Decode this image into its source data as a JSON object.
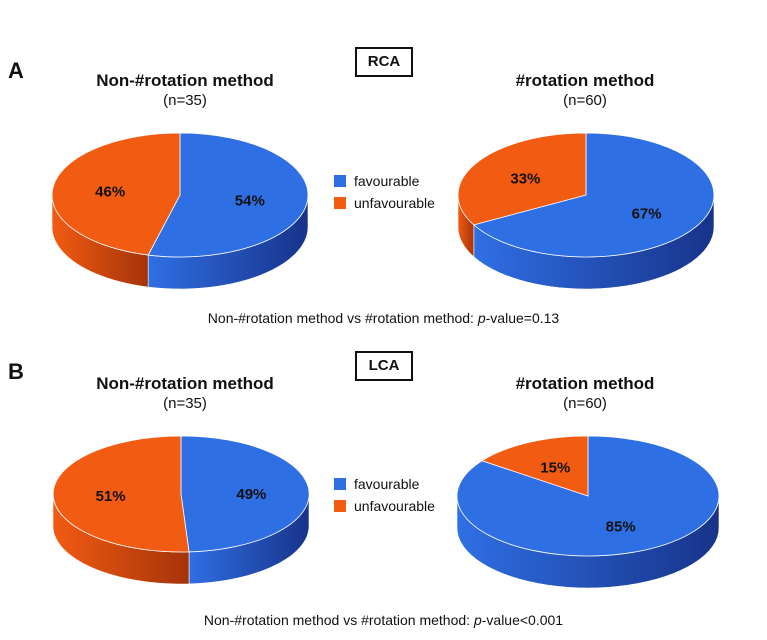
{
  "colors": {
    "favourable": "#2f6fe4",
    "favourable_dark": "#17338a",
    "unfavourable": "#f25b12",
    "unfavourable_dark": "#a5330a"
  },
  "legend": {
    "favourable": "favourable",
    "unfavourable": "unfavourable"
  },
  "panels": [
    {
      "letter": "A",
      "vessel": "RCA",
      "left": {
        "title": "Non-#rotation method",
        "n": "(n=35)"
      },
      "right": {
        "title": "#rotation method",
        "n": "(n=60)"
      },
      "comparison_prefix": "Non-#rotation method vs #rotation method: ",
      "comparison_p": "p",
      "comparison_suffix": "-value=0.13"
    },
    {
      "letter": "B",
      "vessel": "LCA",
      "left": {
        "title": "Non-#rotation method",
        "n": "(n=35)"
      },
      "right": {
        "title": "#rotation method",
        "n": "(n=60)"
      },
      "comparison_prefix": "Non-#rotation method vs #rotation method: ",
      "comparison_p": "p",
      "comparison_suffix": "-value<0.001"
    }
  ],
  "chart_data": [
    {
      "type": "pie",
      "panel": "A",
      "group": "Non-#rotation method",
      "categories": [
        "favourable",
        "unfavourable"
      ],
      "values": [
        54,
        46
      ],
      "labels": [
        "54%",
        "46%"
      ]
    },
    {
      "type": "pie",
      "panel": "A",
      "group": "#rotation method",
      "categories": [
        "favourable",
        "unfavourable"
      ],
      "values": [
        67,
        33
      ],
      "labels": [
        "67%",
        "33%"
      ]
    },
    {
      "type": "pie",
      "panel": "B",
      "group": "Non-#rotation method",
      "categories": [
        "favourable",
        "unfavourable"
      ],
      "values": [
        49,
        51
      ],
      "labels": [
        "49%",
        "51%"
      ]
    },
    {
      "type": "pie",
      "panel": "B",
      "group": "#rotation method",
      "categories": [
        "favourable",
        "unfavourable"
      ],
      "values": [
        85,
        15
      ],
      "labels": [
        "85%",
        "15%"
      ]
    }
  ]
}
